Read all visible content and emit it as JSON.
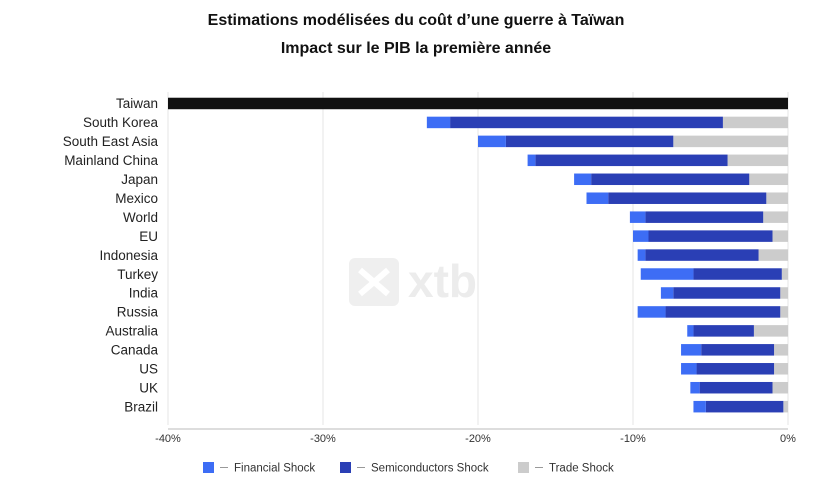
{
  "chart_data": {
    "type": "bar",
    "orientation": "horizontal",
    "stacked": true,
    "title": "Estimations modélisées du coût d’une guerre à Taïwan",
    "subtitle": "Impact sur le PIB la première année",
    "categories": [
      "Taiwan",
      "South Korea",
      "South East Asia",
      "Mainland China",
      "Japan",
      "Mexico",
      "World",
      "EU",
      "Indonesia",
      "Turkey",
      "India",
      "Russia",
      "Australia",
      "Canada",
      "US",
      "UK",
      "Brazil"
    ],
    "series": [
      {
        "name": "Trade Shock",
        "color": "#cccccc",
        "values": [
          0,
          -4.2,
          -7.4,
          -3.9,
          -2.5,
          -1.4,
          -1.6,
          -1.0,
          -1.9,
          -0.4,
          -0.5,
          -0.5,
          -2.2,
          -0.9,
          -0.9,
          -1.0,
          -0.3
        ]
      },
      {
        "name": "Semiconductors Shock",
        "color": "#2a3fb5",
        "values": [
          -40.0,
          -17.6,
          -10.8,
          -12.4,
          -10.2,
          -10.2,
          -7.6,
          -8.0,
          -7.3,
          -5.7,
          -6.9,
          -7.4,
          -3.9,
          -4.7,
          -5.0,
          -4.7,
          -5.0
        ]
      },
      {
        "name": "Financial Shock",
        "color": "#3d6df5",
        "values": [
          0,
          -1.5,
          -1.8,
          -0.5,
          -1.1,
          -1.4,
          -1.0,
          -1.0,
          -0.5,
          -3.4,
          -0.8,
          -1.8,
          -0.4,
          -1.3,
          -1.0,
          -0.6,
          -0.8
        ]
      }
    ],
    "xlim": [
      -40,
      0
    ],
    "ticks": [
      "-40%",
      "-30%",
      "-20%",
      "-10%",
      "0%"
    ],
    "tick_values": [
      -40,
      -30,
      -20,
      -10,
      0
    ],
    "grid": true,
    "legend_position": "bottom",
    "legend": [
      {
        "name": "Financial Shock",
        "color": "#3d6df5"
      },
      {
        "name": "Semiconductors Shock",
        "color": "#2a3fb5"
      },
      {
        "name": "Trade Shock",
        "color": "#cccccc"
      }
    ],
    "watermark": "xtb"
  }
}
